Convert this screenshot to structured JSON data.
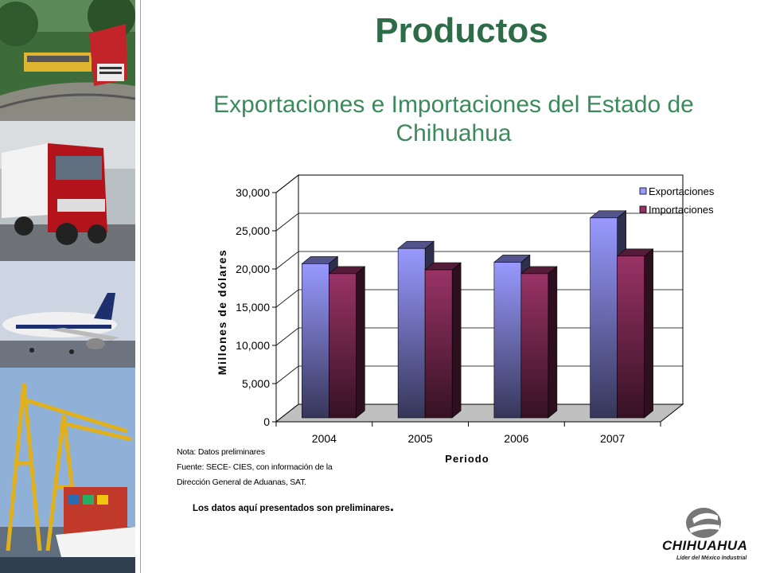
{
  "page": {
    "title": "Productos",
    "subtitle": "Exportaciones e Importaciones del Estado de Chihuahua"
  },
  "notes": {
    "line1": "Nota: Datos preliminares",
    "line2": "Fuente: SECE- CIES, con información de la",
    "line3": "Dirección General de Aduanas, SAT.",
    "preliminary": "Los datos aquí presentados  son preliminares",
    "preliminary_mark": "."
  },
  "logo": {
    "name": "CHIHUAHUA",
    "tagline": "Líder del México Industrial"
  },
  "chart_data": {
    "type": "bar",
    "title": "",
    "xlabel": "Periodo",
    "ylabel": "Millones de dólares",
    "categories": [
      "2004",
      "2005",
      "2006",
      "2007"
    ],
    "series": [
      {
        "name": "Exportaciones",
        "values": [
          21000,
          23000,
          21200,
          27000
        ],
        "color": "#9999ff"
      },
      {
        "name": "Importaciones",
        "values": [
          19700,
          20200,
          19700,
          22000
        ],
        "color": "#993366"
      }
    ],
    "ylim": [
      0,
      30000
    ],
    "yticks": [
      "0",
      "5,000",
      "10,000",
      "15,000",
      "20,000",
      "25,000",
      "30,000"
    ],
    "grid": true,
    "legend": "top-right",
    "style": "3d"
  }
}
